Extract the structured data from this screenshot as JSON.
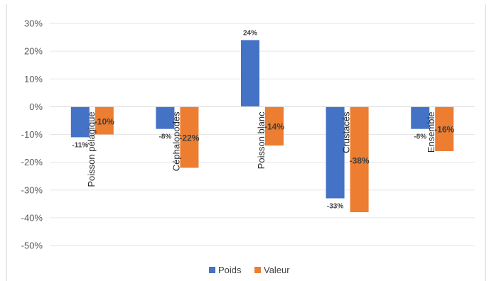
{
  "chart_data": {
    "type": "bar",
    "categories": [
      "Poisson pélagique",
      "Céphalopodes",
      "Poisson blanc",
      "Crustacés",
      "Ensemble"
    ],
    "series": [
      {
        "name": "Poids",
        "values": [
          -11,
          -8,
          24,
          -33,
          -8
        ],
        "labels": [
          "-11%",
          "-8%",
          "24%",
          "-33%",
          "-8%"
        ],
        "color": "#4472C4"
      },
      {
        "name": "Valeur",
        "values": [
          -10,
          -22,
          -14,
          -38,
          -16
        ],
        "labels": [
          "-10%",
          "-22%",
          "-14%",
          "-38%",
          "-16%"
        ],
        "color": "#ED7D31"
      }
    ],
    "y_ticks": [
      "30%",
      "20%",
      "10%",
      "0%",
      "-10%",
      "-20%",
      "-30%",
      "-40%",
      "-50%"
    ],
    "ylim": [
      -50,
      30
    ],
    "grid": true,
    "legend": "bottom"
  }
}
